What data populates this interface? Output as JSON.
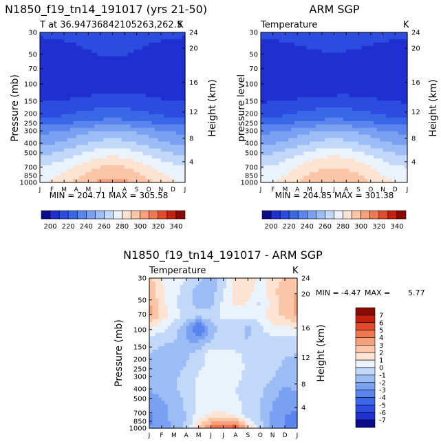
{
  "chart_data": [
    {
      "type": "heatmap",
      "id": "model",
      "title": "N1850_f19_tn14_191017 (yrs 21-50)",
      "subtitle": "T at 36.94736842105263,262.5",
      "left_label": "T at 36.94736842105263,262.5",
      "right_label": "K",
      "ylabel": "Pressure (mb)",
      "y2label": "Height (km)",
      "x_ticks": [
        "J",
        "F",
        "M",
        "A",
        "M",
        "J",
        "J",
        "A",
        "S",
        "O",
        "N",
        "D",
        "J"
      ],
      "y_ticks": [
        30,
        50,
        70,
        100,
        150,
        200,
        250,
        300,
        400,
        500,
        700,
        850,
        1000
      ],
      "y2_ticks": [
        24,
        20,
        16,
        12,
        8,
        4
      ],
      "stats": "MIN = 204.71  MAX = 305.58",
      "min": 204.71,
      "max": 305.58,
      "z_profile": [
        212,
        210,
        208,
        206,
        205,
        210,
        216,
        226,
        246,
        258,
        272,
        284,
        292
      ],
      "z_season_amp": [
        1,
        1.5,
        2,
        2.5,
        2.5,
        3,
        3.5,
        5,
        7,
        8,
        9,
        10,
        12
      ]
    },
    {
      "type": "heatmap",
      "id": "obs",
      "title": "ARM SGP",
      "left_label": "Temperature",
      "right_label": "K",
      "ylabel": "pressure level",
      "y2label": "Height (km)",
      "x_ticks": [
        "J",
        "F",
        "M",
        "A",
        "M",
        "J",
        "J",
        "A",
        "S",
        "O",
        "N",
        "D",
        "J"
      ],
      "y_ticks": [
        30,
        50,
        70,
        100,
        150,
        200,
        250,
        300,
        400,
        500,
        700,
        850,
        1000
      ],
      "y2_ticks": [
        24,
        20,
        16,
        12,
        8,
        4
      ],
      "stats": "MIN = 204.85  MAX = 301.38",
      "min": 204.85,
      "max": 301.38,
      "z_profile": [
        213,
        210,
        207,
        205,
        205,
        209,
        216,
        226,
        246,
        258,
        272,
        282,
        290
      ],
      "z_season_amp": [
        1,
        1.5,
        2,
        2.5,
        2.5,
        3,
        3.5,
        5,
        7,
        8,
        9,
        10,
        11
      ]
    },
    {
      "type": "heatmap",
      "id": "diff",
      "title": "N1850_f19_tn14_191017 - ARM SGP",
      "left_label": "Temperature",
      "right_label": "K",
      "ylabel": "Pressure (mb)",
      "y2label": "Height (km)",
      "x_ticks": [
        "J",
        "F",
        "M",
        "A",
        "M",
        "J",
        "J",
        "A",
        "S",
        "O",
        "N",
        "D",
        "J"
      ],
      "y_ticks": [
        30,
        50,
        70,
        100,
        150,
        200,
        250,
        300,
        400,
        500,
        700,
        850,
        1000
      ],
      "y2_ticks": [
        24,
        20,
        16,
        12,
        8,
        4
      ],
      "stats_label": "MIN =",
      "stats_min_value": "-4.47",
      "stats_max_label": "MAX =",
      "stats_max_value": "5.77",
      "min": -4.47,
      "max": 5.77
    }
  ],
  "colorbar_abs": {
    "labels": [
      "200",
      "220",
      "240",
      "260",
      "280",
      "300",
      "320",
      "340"
    ],
    "levels": [
      200,
      210,
      220,
      230,
      240,
      250,
      260,
      270,
      280,
      290,
      300,
      310,
      320,
      330,
      340
    ],
    "colors": [
      "#0a0c8c",
      "#1f2fd0",
      "#2c4ce0",
      "#3a66e8",
      "#5a84ee",
      "#7aa0f2",
      "#9cbcf5",
      "#c2d8f8",
      "#eaf2fc",
      "#fde4d2",
      "#fbc6a8",
      "#f7a07c",
      "#f07850",
      "#e24a2c",
      "#c42010",
      "#8a0a04"
    ]
  },
  "colorbar_diff": {
    "labels": [
      "7",
      "6",
      "5",
      "4",
      "3",
      "2",
      "1",
      "0",
      "-1",
      "-2",
      "-3",
      "-4",
      "-5",
      "-6",
      "-7"
    ],
    "levels": [
      -7,
      -6,
      -5,
      -4,
      -3,
      -2,
      -1,
      0,
      1,
      2,
      3,
      4,
      5,
      6,
      7
    ],
    "colors": [
      "#0a0c8c",
      "#1f2fd0",
      "#2c4ce0",
      "#3a66e8",
      "#5a84ee",
      "#7aa0f2",
      "#9cbcf5",
      "#c2d8f8",
      "#eaf2fc",
      "#fde4d2",
      "#fbc6a8",
      "#f7a07c",
      "#f07850",
      "#e24a2c",
      "#c42010",
      "#8a0a04"
    ]
  },
  "diff_grid": [
    [
      2.5,
      1.0,
      0.3,
      0.2,
      -0.8,
      -1.5,
      -0.5,
      1.5,
      2.0,
      0.6,
      1.5,
      2.2,
      2.5
    ],
    [
      3.0,
      1.2,
      0.4,
      -0.5,
      -1.5,
      -1.6,
      -0.2,
      1.6,
      1.6,
      0.2,
      1.8,
      2.6,
      3.0
    ],
    [
      3.2,
      1.4,
      0.2,
      -0.6,
      -1.6,
      -1.2,
      0.2,
      1.2,
      1.0,
      -0.2,
      1.5,
      2.4,
      3.2
    ],
    [
      3.4,
      1.6,
      0.4,
      -0.2,
      -0.6,
      -0.6,
      0.2,
      0.4,
      0.2,
      0.4,
      1.8,
      2.2,
      3.4
    ],
    [
      1.2,
      0.4,
      -0.4,
      -1.8,
      -4.5,
      -1.5,
      -0.4,
      -0.6,
      -1.2,
      -0.2,
      0.8,
      0.6,
      1.2
    ],
    [
      -0.6,
      -0.8,
      -1.0,
      -2.0,
      -2.2,
      -1.0,
      -0.4,
      -0.8,
      -1.0,
      -0.6,
      -0.4,
      -0.6,
      -0.6
    ],
    [
      -1.0,
      -1.2,
      -1.5,
      -1.2,
      -0.6,
      0.4,
      0.3,
      0.2,
      -0.4,
      -0.5,
      -0.6,
      -0.9,
      -1.0
    ],
    [
      -1.2,
      -1.5,
      -1.4,
      -1.0,
      -0.4,
      0.6,
      0.8,
      0.4,
      -0.2,
      -0.4,
      -0.6,
      -1.2,
      -1.2
    ],
    [
      -1.5,
      -1.6,
      -1.2,
      -0.6,
      0.2,
      0.8,
      0.6,
      0.2,
      -0.2,
      -0.6,
      -1.0,
      -1.5,
      -1.5
    ],
    [
      -2.0,
      -1.8,
      -1.2,
      -0.6,
      0.2,
      0.5,
      0.4,
      0.0,
      -0.4,
      -0.8,
      -1.6,
      -2.2,
      -2.0
    ],
    [
      -2.6,
      -2.2,
      -1.6,
      -0.8,
      0.4,
      0.4,
      0.6,
      0.4,
      -0.6,
      -1.0,
      -2.0,
      -2.6,
      -2.6
    ],
    [
      -3.2,
      -2.4,
      -1.6,
      -1.0,
      0.6,
      1.2,
      1.2,
      0.8,
      -0.6,
      -1.0,
      -2.2,
      -3.0,
      -3.2
    ],
    [
      -3.0,
      -2.6,
      -1.8,
      -0.8,
      2.0,
      4.5,
      5.5,
      5.7,
      2.5,
      -0.6,
      -2.2,
      -3.0,
      -3.0
    ]
  ]
}
